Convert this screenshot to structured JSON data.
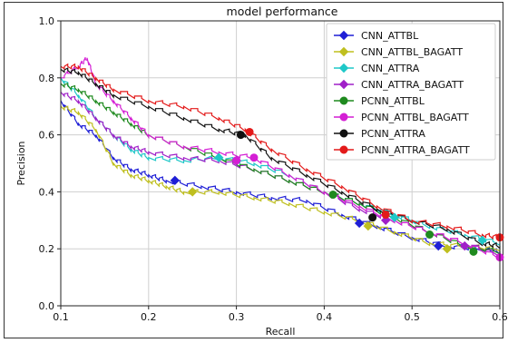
{
  "chart_data": {
    "type": "line",
    "title": "model performance",
    "xlabel": "Recall",
    "ylabel": "Precision",
    "xlim": [
      0.1,
      0.6
    ],
    "ylim": [
      0.0,
      1.0
    ],
    "x_ticks": [
      "0.1",
      "0.2",
      "0.3",
      "0.4",
      "0.5",
      "0.6"
    ],
    "y_ticks": [
      "0.0",
      "0.2",
      "0.4",
      "0.6",
      "0.8",
      "1.0"
    ],
    "grid": true,
    "legend_position": "top-right",
    "series": [
      {
        "name": "CNN_ATTBL",
        "color": "#1f1fd6",
        "marker": "diamond",
        "points": [
          [
            0.1,
            0.72
          ],
          [
            0.12,
            0.64
          ],
          [
            0.14,
            0.6
          ],
          [
            0.16,
            0.52
          ],
          [
            0.18,
            0.48
          ],
          [
            0.2,
            0.46
          ],
          [
            0.22,
            0.44
          ],
          [
            0.26,
            0.42
          ],
          [
            0.3,
            0.4
          ],
          [
            0.34,
            0.38
          ],
          [
            0.38,
            0.37
          ],
          [
            0.42,
            0.32
          ],
          [
            0.46,
            0.28
          ],
          [
            0.5,
            0.24
          ],
          [
            0.54,
            0.21
          ],
          [
            0.58,
            0.2
          ],
          [
            0.6,
            0.19
          ]
        ],
        "marker_points": [
          [
            0.23,
            0.44
          ],
          [
            0.44,
            0.29
          ],
          [
            0.53,
            0.21
          ]
        ]
      },
      {
        "name": "CNN_ATTBL_BAGATT",
        "color": "#bfbf1f",
        "marker": "diamond",
        "points": [
          [
            0.1,
            0.7
          ],
          [
            0.12,
            0.68
          ],
          [
            0.14,
            0.62
          ],
          [
            0.16,
            0.5
          ],
          [
            0.18,
            0.46
          ],
          [
            0.2,
            0.44
          ],
          [
            0.22,
            0.42
          ],
          [
            0.24,
            0.4
          ],
          [
            0.28,
            0.4
          ],
          [
            0.32,
            0.38
          ],
          [
            0.36,
            0.36
          ],
          [
            0.4,
            0.33
          ],
          [
            0.44,
            0.3
          ],
          [
            0.48,
            0.26
          ],
          [
            0.52,
            0.22
          ],
          [
            0.56,
            0.21
          ],
          [
            0.6,
            0.2
          ]
        ],
        "marker_points": [
          [
            0.25,
            0.4
          ],
          [
            0.45,
            0.28
          ],
          [
            0.54,
            0.2
          ]
        ]
      },
      {
        "name": "CNN_ATTRA",
        "color": "#1fc8c8",
        "marker": "diamond",
        "points": [
          [
            0.1,
            0.8
          ],
          [
            0.12,
            0.74
          ],
          [
            0.14,
            0.66
          ],
          [
            0.16,
            0.6
          ],
          [
            0.18,
            0.55
          ],
          [
            0.2,
            0.52
          ],
          [
            0.24,
            0.51
          ],
          [
            0.28,
            0.52
          ],
          [
            0.32,
            0.5
          ],
          [
            0.36,
            0.46
          ],
          [
            0.4,
            0.4
          ],
          [
            0.44,
            0.36
          ],
          [
            0.48,
            0.32
          ],
          [
            0.52,
            0.28
          ],
          [
            0.56,
            0.25
          ],
          [
            0.6,
            0.22
          ]
        ],
        "marker_points": [
          [
            0.28,
            0.52
          ],
          [
            0.48,
            0.31
          ],
          [
            0.58,
            0.23
          ]
        ]
      },
      {
        "name": "CNN_ATTRA_BAGATT",
        "color": "#a020c8",
        "marker": "diamond",
        "points": [
          [
            0.1,
            0.75
          ],
          [
            0.12,
            0.72
          ],
          [
            0.14,
            0.66
          ],
          [
            0.16,
            0.6
          ],
          [
            0.18,
            0.56
          ],
          [
            0.2,
            0.54
          ],
          [
            0.24,
            0.52
          ],
          [
            0.28,
            0.51
          ],
          [
            0.32,
            0.48
          ],
          [
            0.36,
            0.44
          ],
          [
            0.4,
            0.4
          ],
          [
            0.44,
            0.34
          ],
          [
            0.48,
            0.3
          ],
          [
            0.52,
            0.26
          ],
          [
            0.56,
            0.22
          ],
          [
            0.6,
            0.18
          ]
        ],
        "marker_points": [
          [
            0.3,
            0.51
          ],
          [
            0.47,
            0.3
          ],
          [
            0.56,
            0.21
          ]
        ]
      },
      {
        "name": "PCNN_ATTBL",
        "color": "#1f8a1f",
        "marker": "circle",
        "points": [
          [
            0.1,
            0.78
          ],
          [
            0.12,
            0.76
          ],
          [
            0.14,
            0.72
          ],
          [
            0.16,
            0.68
          ],
          [
            0.18,
            0.64
          ],
          [
            0.2,
            0.6
          ],
          [
            0.24,
            0.56
          ],
          [
            0.28,
            0.52
          ],
          [
            0.32,
            0.48
          ],
          [
            0.36,
            0.44
          ],
          [
            0.4,
            0.4
          ],
          [
            0.44,
            0.36
          ],
          [
            0.48,
            0.31
          ],
          [
            0.52,
            0.26
          ],
          [
            0.56,
            0.21
          ],
          [
            0.6,
            0.19
          ]
        ],
        "marker_points": [
          [
            0.41,
            0.39
          ],
          [
            0.52,
            0.25
          ],
          [
            0.57,
            0.19
          ]
        ]
      },
      {
        "name": "PCNN_ATTBL_BAGATT",
        "color": "#d41fd4",
        "marker": "circle",
        "points": [
          [
            0.1,
            0.8
          ],
          [
            0.12,
            0.84
          ],
          [
            0.13,
            0.87
          ],
          [
            0.14,
            0.78
          ],
          [
            0.16,
            0.72
          ],
          [
            0.18,
            0.66
          ],
          [
            0.2,
            0.6
          ],
          [
            0.24,
            0.56
          ],
          [
            0.28,
            0.54
          ],
          [
            0.32,
            0.52
          ],
          [
            0.36,
            0.46
          ],
          [
            0.4,
            0.4
          ],
          [
            0.44,
            0.35
          ],
          [
            0.48,
            0.3
          ],
          [
            0.52,
            0.26
          ],
          [
            0.56,
            0.22
          ],
          [
            0.6,
            0.17
          ]
        ],
        "marker_points": [
          [
            0.3,
            0.51
          ],
          [
            0.32,
            0.52
          ],
          [
            0.6,
            0.17
          ]
        ]
      },
      {
        "name": "PCNN_ATTRA",
        "color": "#111111",
        "marker": "circle",
        "points": [
          [
            0.1,
            0.83
          ],
          [
            0.12,
            0.82
          ],
          [
            0.14,
            0.78
          ],
          [
            0.16,
            0.74
          ],
          [
            0.2,
            0.7
          ],
          [
            0.24,
            0.66
          ],
          [
            0.28,
            0.62
          ],
          [
            0.31,
            0.6
          ],
          [
            0.34,
            0.52
          ],
          [
            0.38,
            0.46
          ],
          [
            0.42,
            0.4
          ],
          [
            0.46,
            0.34
          ],
          [
            0.5,
            0.3
          ],
          [
            0.54,
            0.27
          ],
          [
            0.58,
            0.22
          ],
          [
            0.6,
            0.21
          ]
        ],
        "marker_points": [
          [
            0.305,
            0.6
          ],
          [
            0.455,
            0.31
          ]
        ]
      },
      {
        "name": "PCNN_ATTRA_BAGATT",
        "color": "#e31a1a",
        "marker": "circle",
        "points": [
          [
            0.1,
            0.84
          ],
          [
            0.12,
            0.84
          ],
          [
            0.14,
            0.8
          ],
          [
            0.16,
            0.76
          ],
          [
            0.2,
            0.72
          ],
          [
            0.24,
            0.7
          ],
          [
            0.28,
            0.66
          ],
          [
            0.31,
            0.62
          ],
          [
            0.34,
            0.55
          ],
          [
            0.38,
            0.48
          ],
          [
            0.42,
            0.42
          ],
          [
            0.46,
            0.35
          ],
          [
            0.5,
            0.3
          ],
          [
            0.54,
            0.28
          ],
          [
            0.58,
            0.25
          ],
          [
            0.6,
            0.24
          ]
        ],
        "marker_points": [
          [
            0.315,
            0.61
          ],
          [
            0.47,
            0.32
          ],
          [
            0.6,
            0.24
          ]
        ]
      }
    ]
  }
}
